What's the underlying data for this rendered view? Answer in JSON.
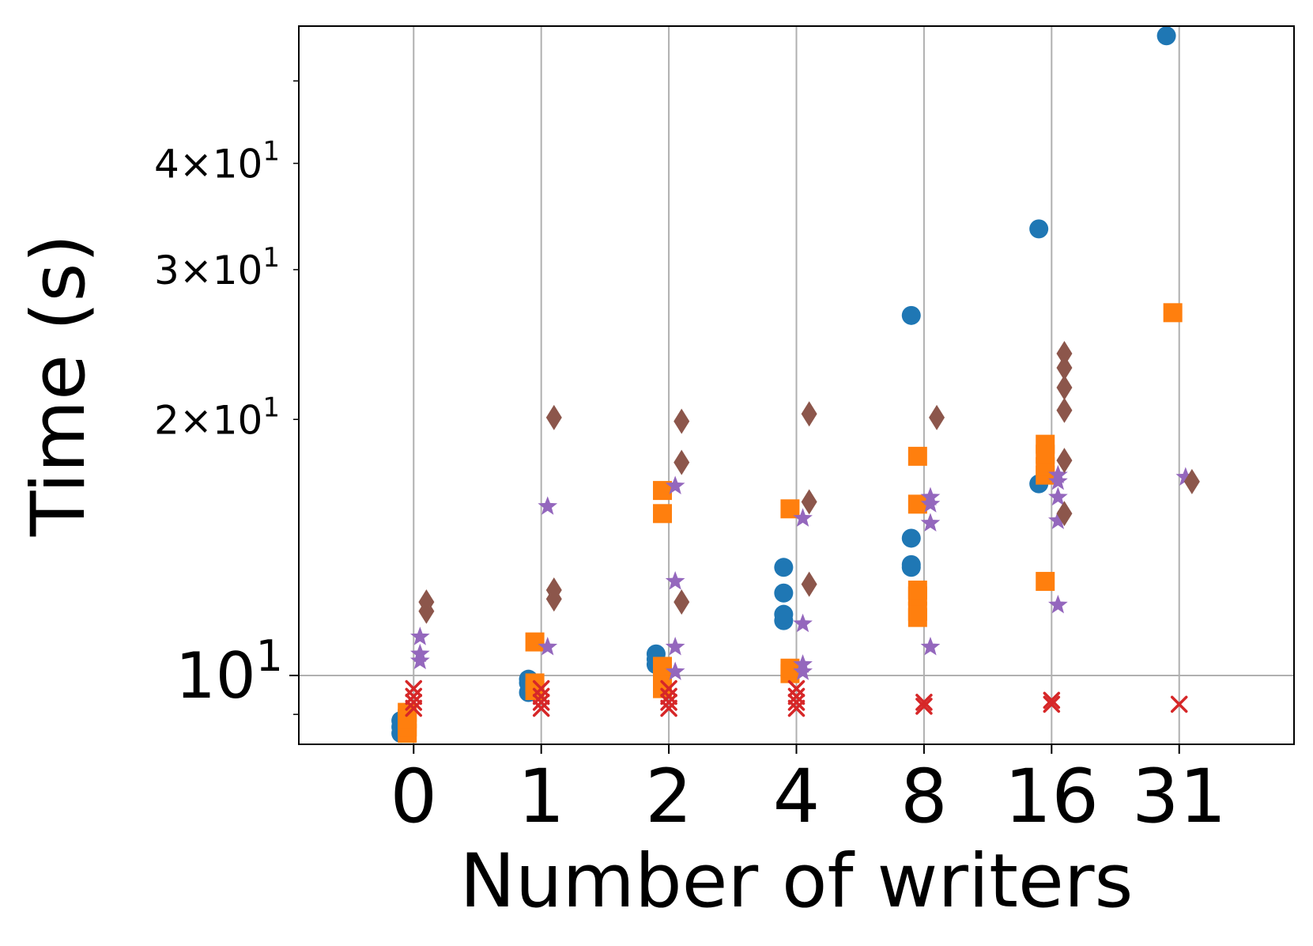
{
  "chart_data": {
    "type": "scatter",
    "title": "",
    "xlabel": "Number of writers",
    "ylabel": "Time (s)",
    "y_scale": "log",
    "grid": true,
    "legend": "none",
    "categories": [
      "0",
      "1",
      "2",
      "4",
      "8",
      "16",
      "31"
    ],
    "ylim": [
      8.3,
      58
    ],
    "y_major_ticks": [
      {
        "value": 10,
        "label_base": "10",
        "label_exp": "1"
      }
    ],
    "y_minor_ticks": [
      {
        "value": 20,
        "label_coef": "2",
        "label_base": "10",
        "label_exp": "1"
      },
      {
        "value": 30,
        "label_coef": "3",
        "label_base": "10",
        "label_exp": "1"
      },
      {
        "value": 40,
        "label_coef": "4",
        "label_base": "10",
        "label_exp": "1"
      },
      {
        "value": 9,
        "label_coef": "",
        "label_base": "",
        "label_exp": ""
      },
      {
        "value": 50,
        "label_coef": "",
        "label_base": "",
        "label_exp": ""
      }
    ],
    "series": [
      {
        "marker": "circle",
        "color": "#1f77b4",
        "points": [
          {
            "x": "0",
            "y": 8.55
          },
          {
            "x": "0",
            "y": 8.7
          },
          {
            "x": "0",
            "y": 8.85
          },
          {
            "x": "1",
            "y": 9.55
          },
          {
            "x": "1",
            "y": 9.8
          },
          {
            "x": "1",
            "y": 9.9
          },
          {
            "x": "2",
            "y": 10.3
          },
          {
            "x": "2",
            "y": 10.45
          },
          {
            "x": "2",
            "y": 10.6
          },
          {
            "x": "4",
            "y": 11.6
          },
          {
            "x": "4",
            "y": 11.8
          },
          {
            "x": "4",
            "y": 12.5
          },
          {
            "x": "4",
            "y": 13.4
          },
          {
            "x": "8",
            "y": 13.4
          },
          {
            "x": "8",
            "y": 13.5
          },
          {
            "x": "8",
            "y": 14.5
          },
          {
            "x": "8",
            "y": 26.5
          },
          {
            "x": "16",
            "y": 16.8
          },
          {
            "x": "16",
            "y": 33.5
          },
          {
            "x": "31",
            "y": 56.5
          }
        ]
      },
      {
        "marker": "square",
        "color": "#ff7f0e",
        "points": [
          {
            "x": "0",
            "y": 8.55
          },
          {
            "x": "0",
            "y": 8.7
          },
          {
            "x": "0",
            "y": 8.9
          },
          {
            "x": "0",
            "y": 9.05
          },
          {
            "x": "1",
            "y": 9.6
          },
          {
            "x": "1",
            "y": 9.8
          },
          {
            "x": "1",
            "y": 10.95
          },
          {
            "x": "2",
            "y": 9.65
          },
          {
            "x": "2",
            "y": 9.85
          },
          {
            "x": "2",
            "y": 10.05
          },
          {
            "x": "2",
            "y": 10.25
          },
          {
            "x": "2",
            "y": 15.5
          },
          {
            "x": "2",
            "y": 16.5
          },
          {
            "x": "4",
            "y": 10.05
          },
          {
            "x": "4",
            "y": 10.2
          },
          {
            "x": "4",
            "y": 15.7
          },
          {
            "x": "8",
            "y": 11.7
          },
          {
            "x": "8",
            "y": 11.9
          },
          {
            "x": "8",
            "y": 12.4
          },
          {
            "x": "8",
            "y": 12.6
          },
          {
            "x": "8",
            "y": 15.9
          },
          {
            "x": "8",
            "y": 18.1
          },
          {
            "x": "16",
            "y": 12.9
          },
          {
            "x": "16",
            "y": 17.2
          },
          {
            "x": "16",
            "y": 17.6
          },
          {
            "x": "16",
            "y": 18.2
          },
          {
            "x": "16",
            "y": 18.7
          },
          {
            "x": "31",
            "y": 26.7
          }
        ]
      },
      {
        "marker": "x",
        "color": "#d62728",
        "points": [
          {
            "x": "0",
            "y": 9.15
          },
          {
            "x": "0",
            "y": 9.3
          },
          {
            "x": "0",
            "y": 9.45
          },
          {
            "x": "0",
            "y": 9.65
          },
          {
            "x": "1",
            "y": 9.15
          },
          {
            "x": "1",
            "y": 9.3
          },
          {
            "x": "1",
            "y": 9.45
          },
          {
            "x": "1",
            "y": 9.65
          },
          {
            "x": "2",
            "y": 9.15
          },
          {
            "x": "2",
            "y": 9.3
          },
          {
            "x": "2",
            "y": 9.45
          },
          {
            "x": "2",
            "y": 9.65
          },
          {
            "x": "4",
            "y": 9.15
          },
          {
            "x": "4",
            "y": 9.3
          },
          {
            "x": "4",
            "y": 9.45
          },
          {
            "x": "4",
            "y": 9.65
          },
          {
            "x": "8",
            "y": 9.2
          },
          {
            "x": "8",
            "y": 9.3
          },
          {
            "x": "16",
            "y": 9.25
          },
          {
            "x": "16",
            "y": 9.35
          },
          {
            "x": "31",
            "y": 9.25
          }
        ]
      },
      {
        "marker": "star",
        "color": "#9467bd",
        "points": [
          {
            "x": "0",
            "y": 10.4
          },
          {
            "x": "0",
            "y": 10.6
          },
          {
            "x": "0",
            "y": 11.1
          },
          {
            "x": "1",
            "y": 10.8
          },
          {
            "x": "1",
            "y": 15.8
          },
          {
            "x": "2",
            "y": 10.1
          },
          {
            "x": "2",
            "y": 10.8
          },
          {
            "x": "2",
            "y": 12.9
          },
          {
            "x": "2",
            "y": 16.7
          },
          {
            "x": "4",
            "y": 10.1
          },
          {
            "x": "4",
            "y": 10.3
          },
          {
            "x": "4",
            "y": 11.5
          },
          {
            "x": "4",
            "y": 15.3
          },
          {
            "x": "8",
            "y": 10.8
          },
          {
            "x": "8",
            "y": 15.1
          },
          {
            "x": "8",
            "y": 15.9
          },
          {
            "x": "8",
            "y": 16.2
          },
          {
            "x": "16",
            "y": 12.1
          },
          {
            "x": "16",
            "y": 15.2
          },
          {
            "x": "16",
            "y": 16.2
          },
          {
            "x": "16",
            "y": 16.9
          },
          {
            "x": "16",
            "y": 17.2
          },
          {
            "x": "31",
            "y": 17.1
          }
        ]
      },
      {
        "marker": "diamond",
        "color": "#8c564b",
        "points": [
          {
            "x": "0",
            "y": 11.9
          },
          {
            "x": "0",
            "y": 12.2
          },
          {
            "x": "1",
            "y": 12.3
          },
          {
            "x": "1",
            "y": 12.6
          },
          {
            "x": "1",
            "y": 20.1
          },
          {
            "x": "2",
            "y": 12.2
          },
          {
            "x": "2",
            "y": 17.8
          },
          {
            "x": "2",
            "y": 19.9
          },
          {
            "x": "4",
            "y": 12.8
          },
          {
            "x": "4",
            "y": 16.0
          },
          {
            "x": "4",
            "y": 20.3
          },
          {
            "x": "8",
            "y": 20.1
          },
          {
            "x": "16",
            "y": 15.5
          },
          {
            "x": "16",
            "y": 17.9
          },
          {
            "x": "16",
            "y": 20.5
          },
          {
            "x": "16",
            "y": 21.8
          },
          {
            "x": "16",
            "y": 23.0
          },
          {
            "x": "16",
            "y": 23.9
          },
          {
            "x": "31",
            "y": 16.9
          }
        ]
      }
    ]
  }
}
